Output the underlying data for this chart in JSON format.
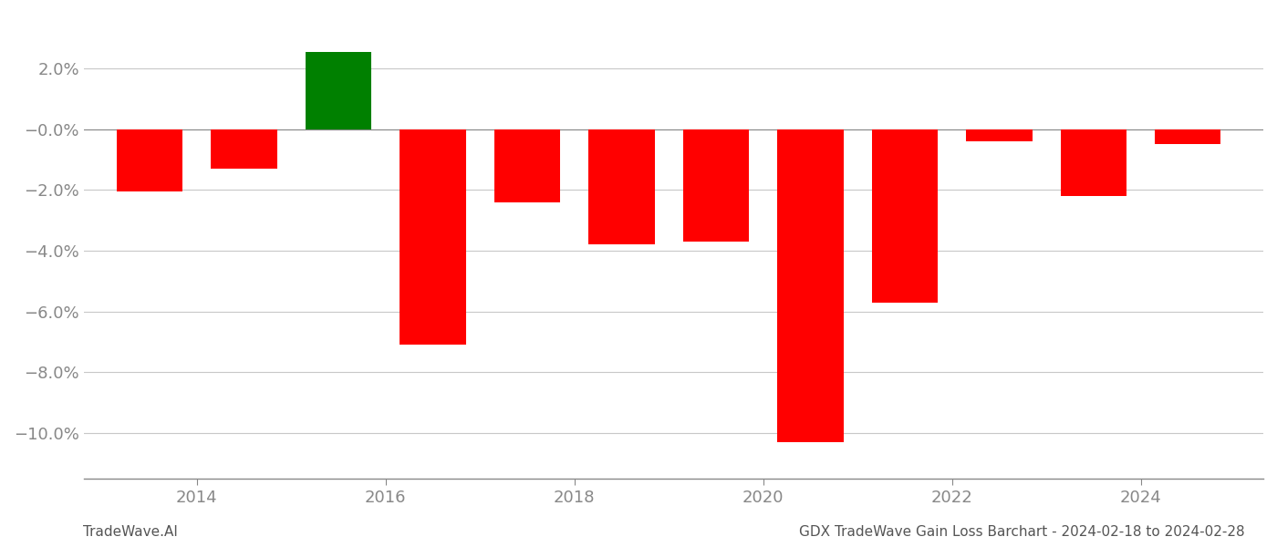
{
  "years": [
    2013.5,
    2014.5,
    2015.5,
    2016.5,
    2017.5,
    2018.5,
    2019.5,
    2020.5,
    2021.5,
    2022.5,
    2023.5,
    2024.5
  ],
  "xtick_positions": [
    2014,
    2016,
    2018,
    2020,
    2022,
    2024
  ],
  "xtick_labels": [
    "2014",
    "2016",
    "2018",
    "2020",
    "2022",
    "2024"
  ],
  "values": [
    -0.0205,
    -0.013,
    0.0255,
    -0.071,
    -0.024,
    -0.038,
    -0.037,
    -0.103,
    -0.057,
    -0.004,
    -0.022,
    -0.005
  ],
  "bar_colors": [
    "#ff0000",
    "#ff0000",
    "#008000",
    "#ff0000",
    "#ff0000",
    "#ff0000",
    "#ff0000",
    "#ff0000",
    "#ff0000",
    "#ff0000",
    "#ff0000",
    "#ff0000"
  ],
  "footer_left": "TradeWave.AI",
  "footer_right": "GDX TradeWave Gain Loss Barchart - 2024-02-18 to 2024-02-28",
  "background_color": "#ffffff",
  "grid_color": "#c8c8c8",
  "ylim": [
    -0.115,
    0.038
  ],
  "bar_width": 0.7,
  "tick_label_color": "#888888",
  "footer_fontsize": 11,
  "axis_label_fontsize": 13,
  "ytick_values": [
    -0.1,
    -0.08,
    -0.06,
    -0.04,
    -0.02,
    0.0,
    0.02
  ],
  "xlim_left": 2012.8,
  "xlim_right": 2025.3
}
